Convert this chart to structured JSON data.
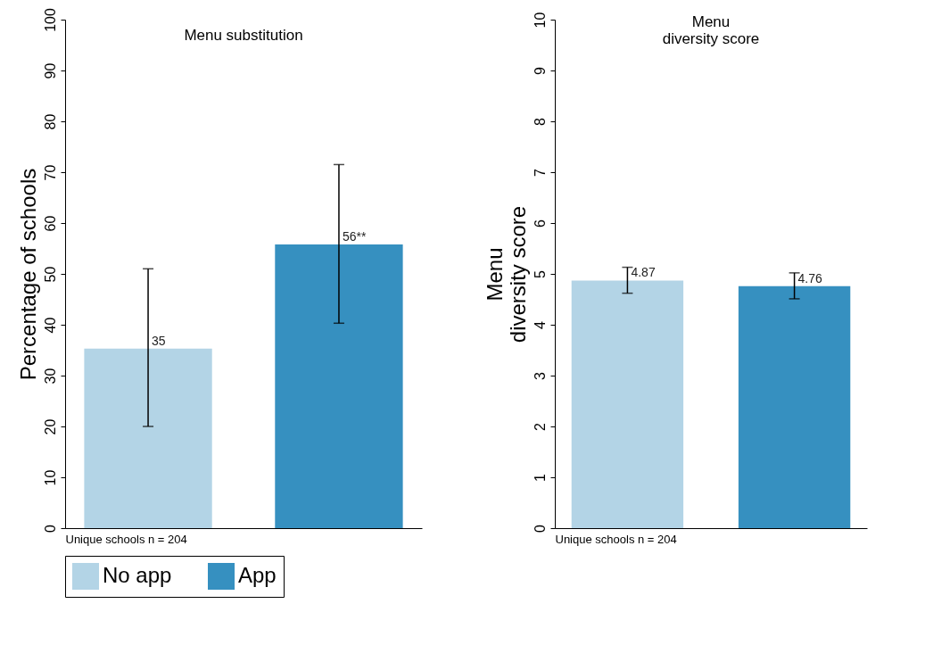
{
  "chart_data": [
    {
      "type": "bar",
      "title": "Menu substitution",
      "ylabel": "Percentage of schools",
      "categories": [
        null
      ],
      "ylim": [
        0,
        100
      ],
      "yticks": [
        0,
        10,
        20,
        30,
        40,
        50,
        60,
        70,
        80,
        90,
        100
      ],
      "grid": false,
      "legend": "bottom",
      "annotations": [
        "Unique schools n = 204"
      ],
      "series": [
        {
          "name": "No app",
          "color": "#b3d4e6",
          "values": [
            35.3
          ],
          "errors": [
            [
              20,
              51
            ]
          ],
          "value_labels": [
            "35"
          ]
        },
        {
          "name": "App",
          "color": "#3690c0",
          "values": [
            55.8
          ],
          "errors": [
            [
              40.3,
              71.5
            ]
          ],
          "value_labels": [
            "56**"
          ]
        }
      ]
    },
    {
      "type": "bar",
      "title": "Menu\ndiversity score",
      "ylabel": "Menu\ndiversity score",
      "categories": [
        null
      ],
      "ylim": [
        0,
        10
      ],
      "yticks": [
        0,
        1,
        2,
        3,
        4,
        5,
        6,
        7,
        8,
        9,
        10
      ],
      "grid": false,
      "data_labels": true,
      "annotations": [
        "Unique schools n = 204"
      ],
      "series": [
        {
          "name": "No app",
          "color": "#b3d4e6",
          "values": [
            4.87
          ],
          "errors": [
            [
              4.62,
              5.13
            ]
          ]
        },
        {
          "name": "App",
          "color": "#3690c0",
          "values": [
            4.76
          ],
          "errors": [
            [
              4.51,
              5.02
            ]
          ]
        }
      ]
    }
  ]
}
